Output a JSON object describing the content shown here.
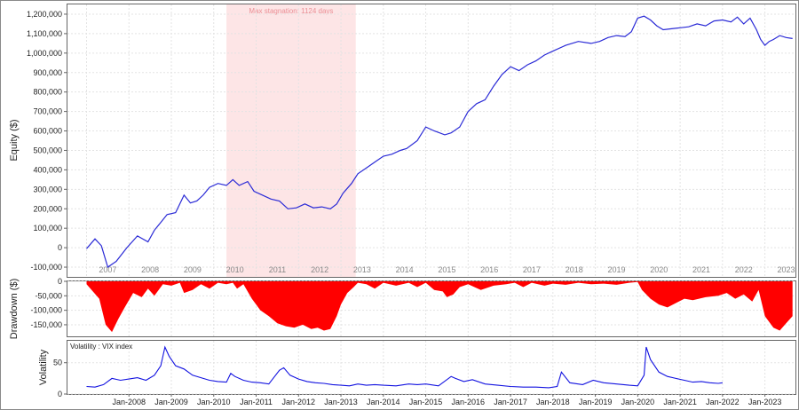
{
  "chart_data": [
    {
      "type": "line",
      "panel": "equity",
      "ylabel": "Equity ($)",
      "ylim": [
        -150000,
        1250000
      ],
      "y_ticks": [
        "1,200,000",
        "1,100,000",
        "1,000,000",
        "900,000",
        "800,000",
        "700,000",
        "600,000",
        "500,000",
        "400,000",
        "300,000",
        "200,000",
        "100,000",
        "0",
        "-100,000"
      ],
      "y_tick_values": [
        1200000,
        1100000,
        1000000,
        900000,
        800000,
        700000,
        600000,
        500000,
        400000,
        300000,
        200000,
        100000,
        0,
        -100000
      ],
      "year_labels": [
        "2007",
        "2008",
        "2009",
        "2010",
        "2011",
        "2012",
        "2013",
        "2014",
        "2015",
        "2016",
        "2017",
        "2018",
        "2019",
        "2020",
        "2021",
        "2022",
        "2023"
      ],
      "stagnation": {
        "label": "Max stagnation: 1124 days",
        "start": 2010.3,
        "end": 2013.35,
        "color": "#fde5e6"
      },
      "line_color": "#2a2ad6",
      "x": [
        2007.0,
        2007.2,
        2007.35,
        2007.5,
        2007.7,
        2007.95,
        2008.2,
        2008.45,
        2008.6,
        2008.75,
        2008.9,
        2009.1,
        2009.3,
        2009.45,
        2009.6,
        2009.75,
        2009.9,
        2010.1,
        2010.3,
        2010.45,
        2010.6,
        2010.8,
        2010.95,
        2011.15,
        2011.35,
        2011.55,
        2011.75,
        2011.95,
        2012.15,
        2012.35,
        2012.55,
        2012.75,
        2012.9,
        2013.05,
        2013.25,
        2013.4,
        2013.6,
        2013.8,
        2014.0,
        2014.2,
        2014.4,
        2014.55,
        2014.8,
        2015.0,
        2015.2,
        2015.45,
        2015.6,
        2015.8,
        2016.0,
        2016.2,
        2016.4,
        2016.6,
        2016.8,
        2017.0,
        2017.2,
        2017.4,
        2017.6,
        2017.8,
        2018.0,
        2018.3,
        2018.6,
        2018.9,
        2019.1,
        2019.3,
        2019.5,
        2019.7,
        2019.85,
        2020.0,
        2020.15,
        2020.3,
        2020.45,
        2020.6,
        2020.8,
        2021.0,
        2021.2,
        2021.4,
        2021.6,
        2021.8,
        2022.0,
        2022.2,
        2022.35,
        2022.5,
        2022.65,
        2022.8,
        2022.9,
        2023.0,
        2023.1,
        2023.2,
        2023.35,
        2023.5,
        2023.65
      ],
      "y": [
        -5000,
        45000,
        10000,
        -100000,
        -70000,
        0,
        60000,
        30000,
        90000,
        130000,
        170000,
        180000,
        270000,
        230000,
        240000,
        270000,
        310000,
        330000,
        320000,
        350000,
        320000,
        340000,
        290000,
        270000,
        250000,
        240000,
        200000,
        205000,
        225000,
        205000,
        210000,
        200000,
        225000,
        280000,
        330000,
        380000,
        410000,
        440000,
        470000,
        480000,
        500000,
        510000,
        550000,
        620000,
        600000,
        580000,
        590000,
        620000,
        700000,
        740000,
        760000,
        830000,
        890000,
        930000,
        910000,
        940000,
        960000,
        990000,
        1010000,
        1040000,
        1060000,
        1050000,
        1060000,
        1080000,
        1090000,
        1085000,
        1110000,
        1180000,
        1190000,
        1170000,
        1140000,
        1120000,
        1125000,
        1130000,
        1135000,
        1150000,
        1140000,
        1165000,
        1170000,
        1160000,
        1185000,
        1150000,
        1180000,
        1120000,
        1070000,
        1040000,
        1060000,
        1070000,
        1090000,
        1080000,
        1075000
      ]
    },
    {
      "type": "area",
      "panel": "drawdown",
      "ylabel": "Drawdown ($)",
      "ylim": [
        -190000,
        0
      ],
      "y_ticks": [
        "0",
        "-50,000",
        "-100,000",
        "-150,000"
      ],
      "y_tick_values": [
        0,
        -50000,
        -100000,
        -150000
      ],
      "fill_color": "#ff0000",
      "x": [
        2007.0,
        2007.3,
        2007.45,
        2007.6,
        2007.75,
        2007.9,
        2008.1,
        2008.3,
        2008.45,
        2008.6,
        2008.8,
        2009.0,
        2009.2,
        2009.3,
        2009.5,
        2009.7,
        2009.9,
        2010.1,
        2010.3,
        2010.45,
        2010.55,
        2010.7,
        2010.9,
        2011.1,
        2011.3,
        2011.5,
        2011.7,
        2011.9,
        2012.1,
        2012.3,
        2012.45,
        2012.6,
        2012.75,
        2012.9,
        2013.0,
        2013.15,
        2013.3,
        2013.4,
        2013.6,
        2013.8,
        2014.0,
        2014.3,
        2014.6,
        2014.8,
        2015.0,
        2015.2,
        2015.4,
        2015.5,
        2015.65,
        2015.8,
        2016.0,
        2016.3,
        2016.6,
        2016.9,
        2017.1,
        2017.3,
        2017.5,
        2017.8,
        2018.0,
        2018.3,
        2018.6,
        2018.9,
        2019.2,
        2019.5,
        2019.8,
        2020.0,
        2020.1,
        2020.3,
        2020.5,
        2020.7,
        2020.9,
        2021.1,
        2021.3,
        2021.6,
        2021.9,
        2022.1,
        2022.3,
        2022.5,
        2022.7,
        2022.85,
        2023.0,
        2023.2,
        2023.35,
        2023.5,
        2023.65
      ],
      "y": [
        -10000,
        -60000,
        -150000,
        -175000,
        -130000,
        -90000,
        -40000,
        -55000,
        -25000,
        -50000,
        -10000,
        -15000,
        -5000,
        -40000,
        -30000,
        -10000,
        -25000,
        -5000,
        -10000,
        -5000,
        -25000,
        -10000,
        -60000,
        -100000,
        -120000,
        -145000,
        -155000,
        -160000,
        -150000,
        -165000,
        -160000,
        -170000,
        -165000,
        -120000,
        -80000,
        -40000,
        -20000,
        -5000,
        -10000,
        -25000,
        -5000,
        -15000,
        -5000,
        -20000,
        -5000,
        -30000,
        -35000,
        -55000,
        -45000,
        -20000,
        -10000,
        -30000,
        -15000,
        -10000,
        -5000,
        -20000,
        -5000,
        -15000,
        -8000,
        -12000,
        -5000,
        -10000,
        -8000,
        -12000,
        -5000,
        -2000,
        -30000,
        -60000,
        -80000,
        -90000,
        -75000,
        -60000,
        -65000,
        -55000,
        -50000,
        -40000,
        -60000,
        -45000,
        -70000,
        -30000,
        -120000,
        -160000,
        -170000,
        -145000,
        -120000
      ],
      "year_from": 2006.55,
      "year_to": 2023.72
    },
    {
      "type": "line",
      "panel": "volatility",
      "title": "Volatility : VIX index",
      "ylabel": "Volatility",
      "ylim": [
        0,
        85
      ],
      "y_ticks": [
        "50",
        "0"
      ],
      "y_tick_values": [
        50,
        0
      ],
      "x_ticks": [
        "Jan-2008",
        "Jan-2009",
        "Jan-2010",
        "Jan-2011",
        "Jan-2012",
        "Jan-2013",
        "Jan-2014",
        "Jan-2015",
        "Jan-2016",
        "Jan-2017",
        "Jan-2018",
        "Jan-2019",
        "Jan-2020",
        "Jan-2021",
        "Jan-2022",
        "Jan-2023"
      ],
      "x_tick_values": [
        2008,
        2009,
        2010,
        2011,
        2012,
        2013,
        2014,
        2015,
        2016,
        2017,
        2018,
        2019,
        2020,
        2021,
        2022,
        2023
      ],
      "line_color": "#1212e0",
      "x": [
        2007.0,
        2007.2,
        2007.4,
        2007.6,
        2007.8,
        2008.0,
        2008.2,
        2008.4,
        2008.6,
        2008.75,
        2008.85,
        2008.95,
        2009.1,
        2009.3,
        2009.5,
        2009.7,
        2009.9,
        2010.1,
        2010.3,
        2010.4,
        2010.5,
        2010.7,
        2010.9,
        2011.1,
        2011.3,
        2011.55,
        2011.65,
        2011.8,
        2012.0,
        2012.2,
        2012.4,
        2012.6,
        2012.8,
        2013.0,
        2013.2,
        2013.4,
        2013.6,
        2013.8,
        2014.0,
        2014.3,
        2014.6,
        2014.8,
        2015.0,
        2015.3,
        2015.6,
        2015.7,
        2015.9,
        2016.1,
        2016.4,
        2016.7,
        2017.0,
        2017.3,
        2017.6,
        2017.9,
        2018.1,
        2018.2,
        2018.4,
        2018.7,
        2018.95,
        2019.2,
        2019.5,
        2019.8,
        2020.0,
        2020.15,
        2020.2,
        2020.3,
        2020.5,
        2020.7,
        2020.9,
        2021.1,
        2021.3,
        2021.5,
        2021.7,
        2021.9,
        2022.0
      ],
      "y": [
        12,
        11,
        15,
        25,
        22,
        24,
        26,
        22,
        30,
        45,
        75,
        60,
        45,
        40,
        30,
        26,
        22,
        20,
        19,
        33,
        28,
        22,
        19,
        18,
        16,
        38,
        42,
        30,
        24,
        20,
        18,
        17,
        15,
        14,
        13,
        16,
        14,
        15,
        14,
        13,
        16,
        15,
        16,
        13,
        28,
        25,
        20,
        23,
        16,
        14,
        12,
        11,
        11,
        10,
        12,
        35,
        18,
        15,
        22,
        18,
        16,
        14,
        13,
        30,
        75,
        55,
        35,
        28,
        25,
        22,
        19,
        20,
        18,
        17,
        18
      ]
    }
  ]
}
